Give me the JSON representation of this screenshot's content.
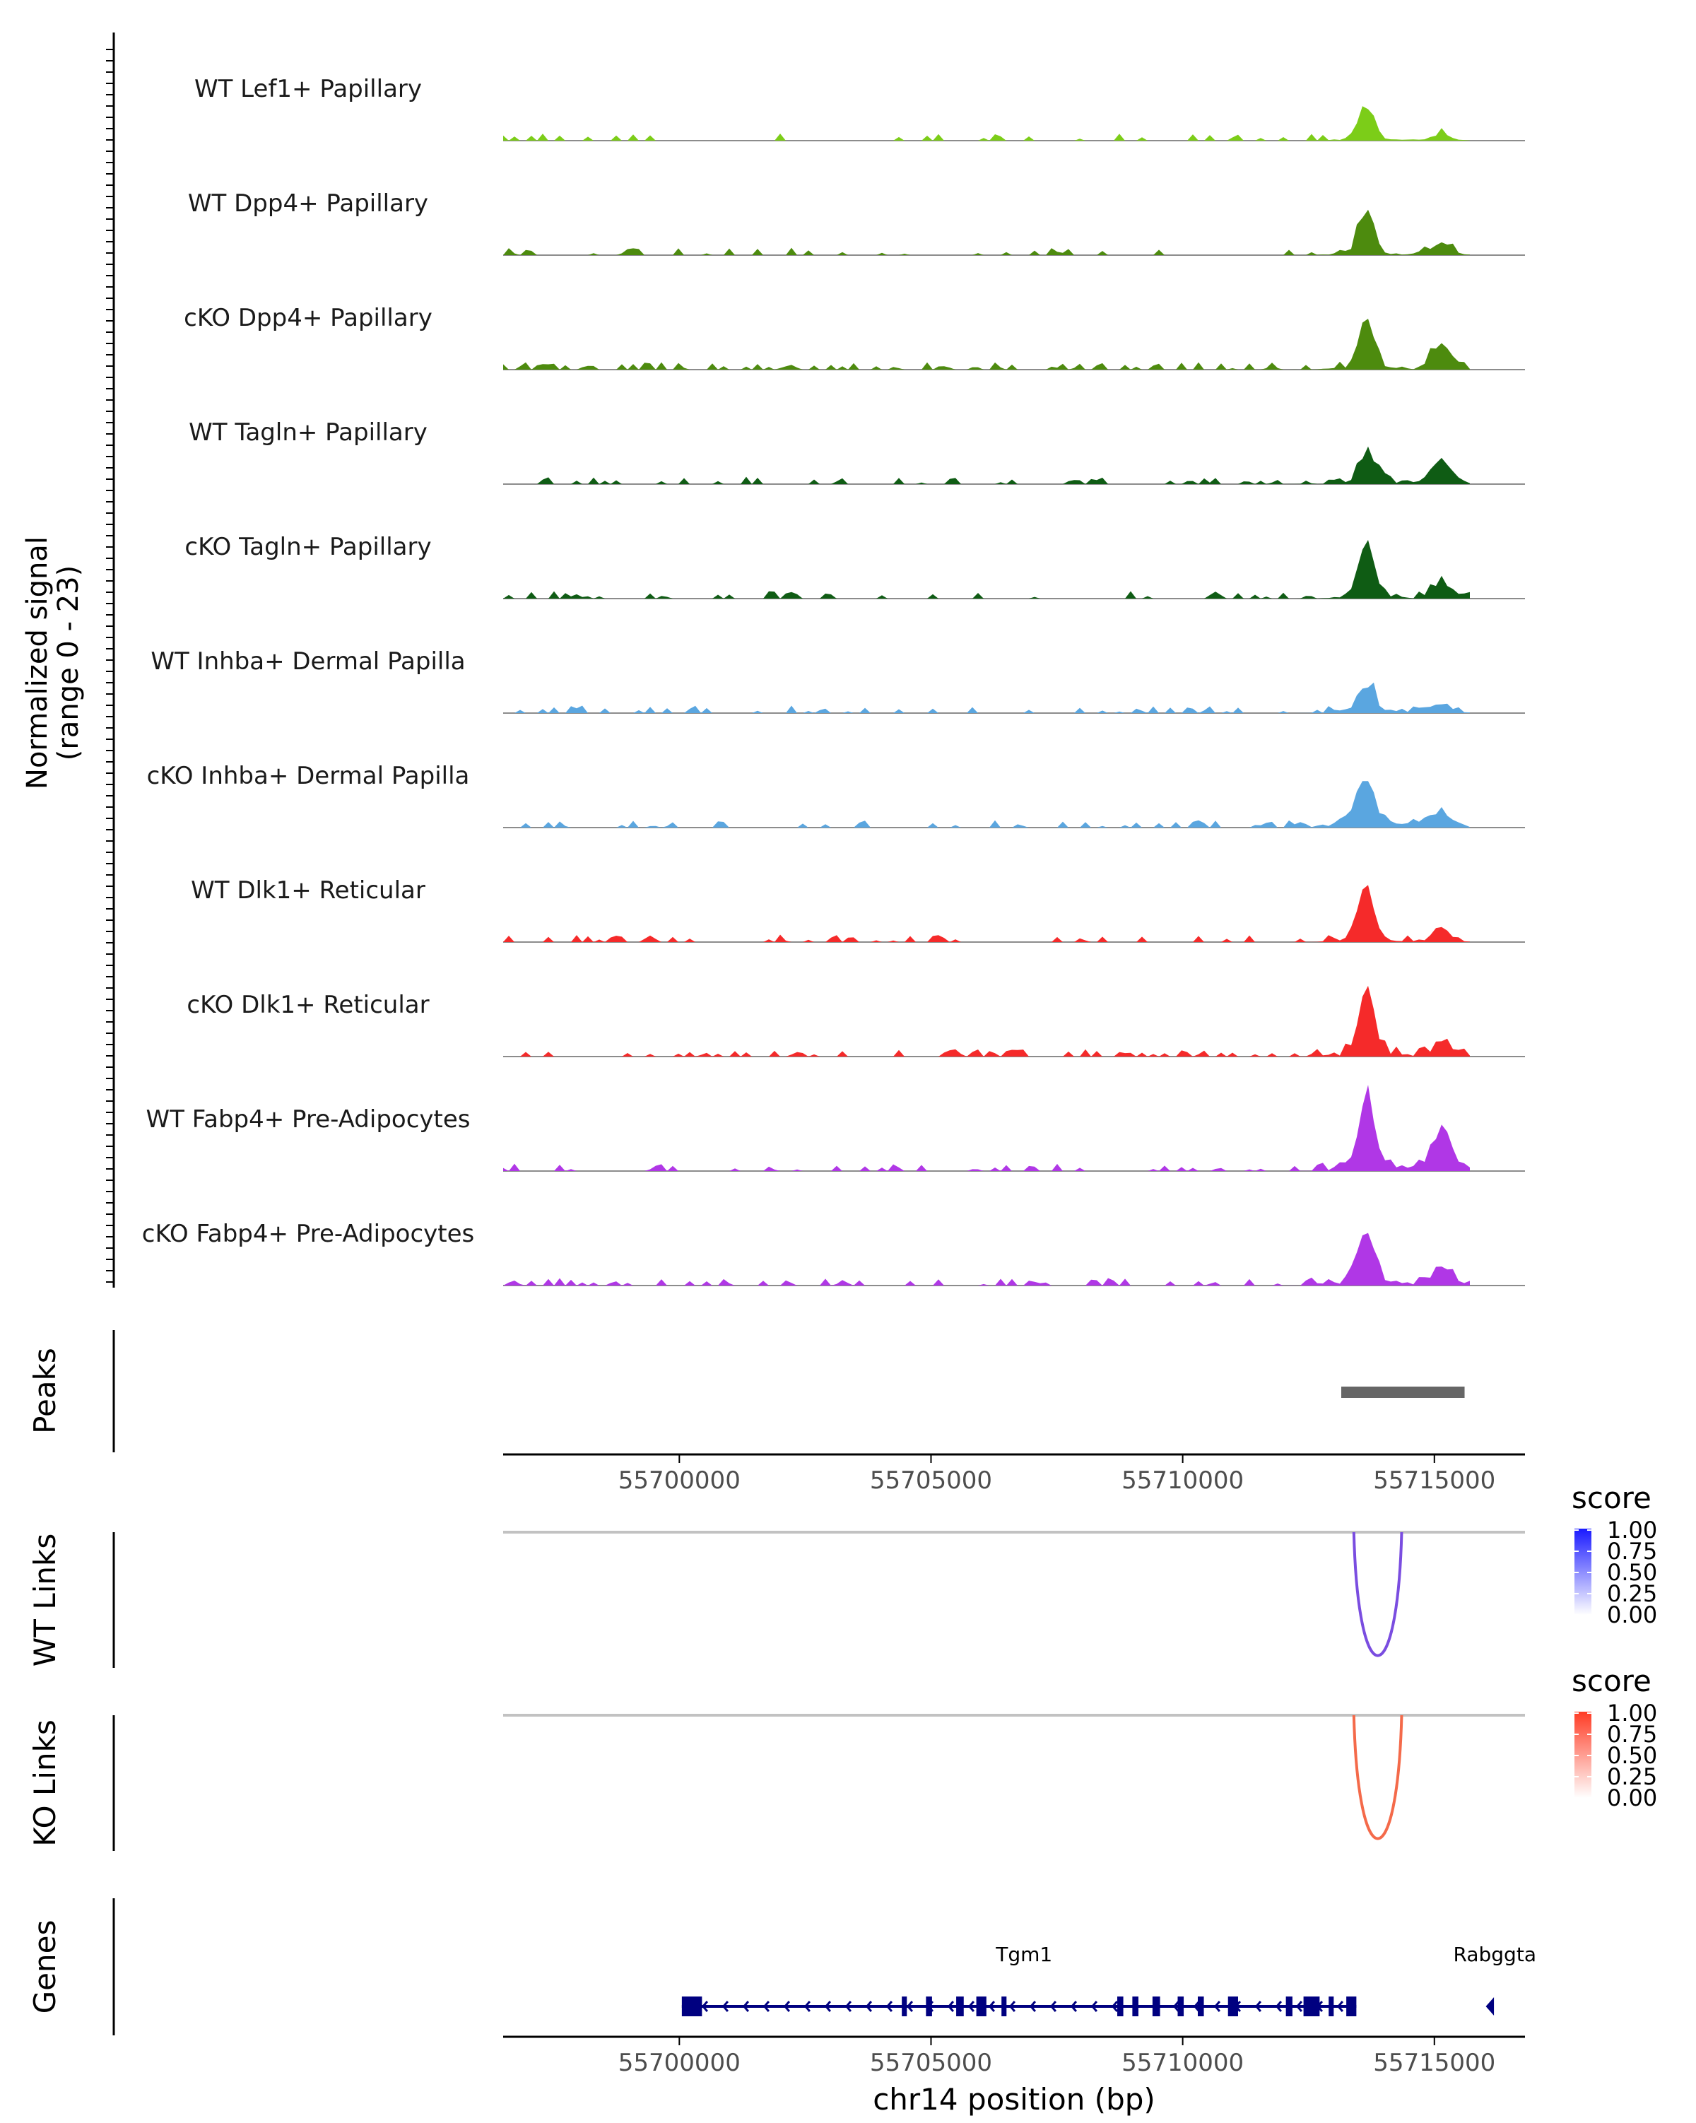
{
  "chart_data": {
    "type": "area",
    "title": "",
    "region": "chr14",
    "xlabel": "chr14 position (bp)",
    "xlim": [
      55696500,
      55716800
    ],
    "xticks": [
      55700000,
      55705000,
      55710000,
      55715000
    ],
    "xtick_labels": [
      "55700000",
      "55705000",
      "55710000",
      "55715000"
    ],
    "coverage": {
      "ylabel": "Normalized signal",
      "ylabel_range": "(range 0 - 23)",
      "ylim": [
        0,
        23
      ],
      "grid": false,
      "tracks": [
        {
          "name": "WT Lef1+ Papillary",
          "color": "#7ccd18",
          "density": 0.35,
          "main_peak": 8.5,
          "second_peak": 1.5,
          "spread": 0.7
        },
        {
          "name": "WT Dpp4+ Papillary",
          "color": "#4d8b0e",
          "density": 0.5,
          "main_peak": 11.0,
          "second_peak": 3.0,
          "spread": 1.0
        },
        {
          "name": "cKO Dpp4+ Papillary",
          "color": "#4d8b0e",
          "density": 0.75,
          "main_peak": 13.0,
          "second_peak": 7.0,
          "spread": 1.2
        },
        {
          "name": "WT Tagln+ Papillary",
          "color": "#0f5c14",
          "density": 0.55,
          "main_peak": 5.5,
          "second_peak": 5.0,
          "spread": 2.5
        },
        {
          "name": "cKO Tagln+ Papillary",
          "color": "#0f5c14",
          "density": 0.6,
          "main_peak": 14.0,
          "second_peak": 3.5,
          "spread": 1.3
        },
        {
          "name": "WT Inhba+ Dermal Papilla",
          "color": "#5aa6e0",
          "density": 0.6,
          "main_peak": 7.0,
          "second_peak": 2.0,
          "spread": 1.3
        },
        {
          "name": "cKO Inhba+ Dermal Papilla",
          "color": "#5aa6e0",
          "density": 0.55,
          "main_peak": 10.0,
          "second_peak": 3.5,
          "spread": 3.5
        },
        {
          "name": "WT Dlk1+ Reticular",
          "color": "#f52a2a",
          "density": 0.6,
          "main_peak": 13.0,
          "second_peak": 2.5,
          "spread": 1.0
        },
        {
          "name": "cKO Dlk1+ Reticular",
          "color": "#f52a2a",
          "density": 0.85,
          "main_peak": 17.0,
          "second_peak": 3.0,
          "spread": 1.8
        },
        {
          "name": "WT Fabp4+ Pre-Adipocytes",
          "color": "#b037e6",
          "density": 0.8,
          "main_peak": 19.0,
          "second_peak": 11.0,
          "spread": 2.5
        },
        {
          "name": "cKO Fabp4+ Pre-Adipocytes",
          "color": "#b037e6",
          "density": 0.7,
          "main_peak": 14.0,
          "second_peak": 5.0,
          "spread": 3.0
        }
      ]
    },
    "peaks": {
      "label": "Peaks",
      "regions": [
        [
          55713150,
          55715600
        ]
      ],
      "color": "#666666"
    },
    "links": [
      {
        "label": "WT Links",
        "start": 55713400,
        "end": 55714350,
        "score": 0.75,
        "color": "#7a4de0",
        "legend_title": "score",
        "legend_ticks": [
          "1.00",
          "0.75",
          "0.50",
          "0.25",
          "0.00"
        ],
        "gradient_low": "#ffffff",
        "gradient_high": "#1a1aff"
      },
      {
        "label": "KO Links",
        "start": 55713400,
        "end": 55714350,
        "score": 0.75,
        "color": "#f46a4a",
        "legend_title": "score",
        "legend_ticks": [
          "1.00",
          "0.75",
          "0.50",
          "0.25",
          "0.00"
        ],
        "gradient_low": "#ffffff",
        "gradient_high": "#ff3b24"
      }
    ],
    "genes": {
      "label": "Genes",
      "color": "#000080",
      "items": [
        {
          "name": "Tgm1",
          "start": 55700050,
          "end": 55713450,
          "strand": "-",
          "exons": [
            [
              55700050,
              55700450
            ],
            [
              55704420,
              55704520
            ],
            [
              55704900,
              55705020
            ],
            [
              55705500,
              55705650
            ],
            [
              55705900,
              55706100
            ],
            [
              55706400,
              55706500
            ],
            [
              55708700,
              55708820
            ],
            [
              55709000,
              55709120
            ],
            [
              55709400,
              55709550
            ],
            [
              55709900,
              55710020
            ],
            [
              55710300,
              55710420
            ],
            [
              55710900,
              55711100
            ],
            [
              55712050,
              55712180
            ],
            [
              55712400,
              55712720
            ],
            [
              55712900,
              55713000
            ],
            [
              55713250,
              55713450
            ]
          ]
        },
        {
          "name": "Rabggta",
          "start": 55715950,
          "end": 55716100,
          "strand": "-",
          "exons": []
        }
      ]
    }
  }
}
